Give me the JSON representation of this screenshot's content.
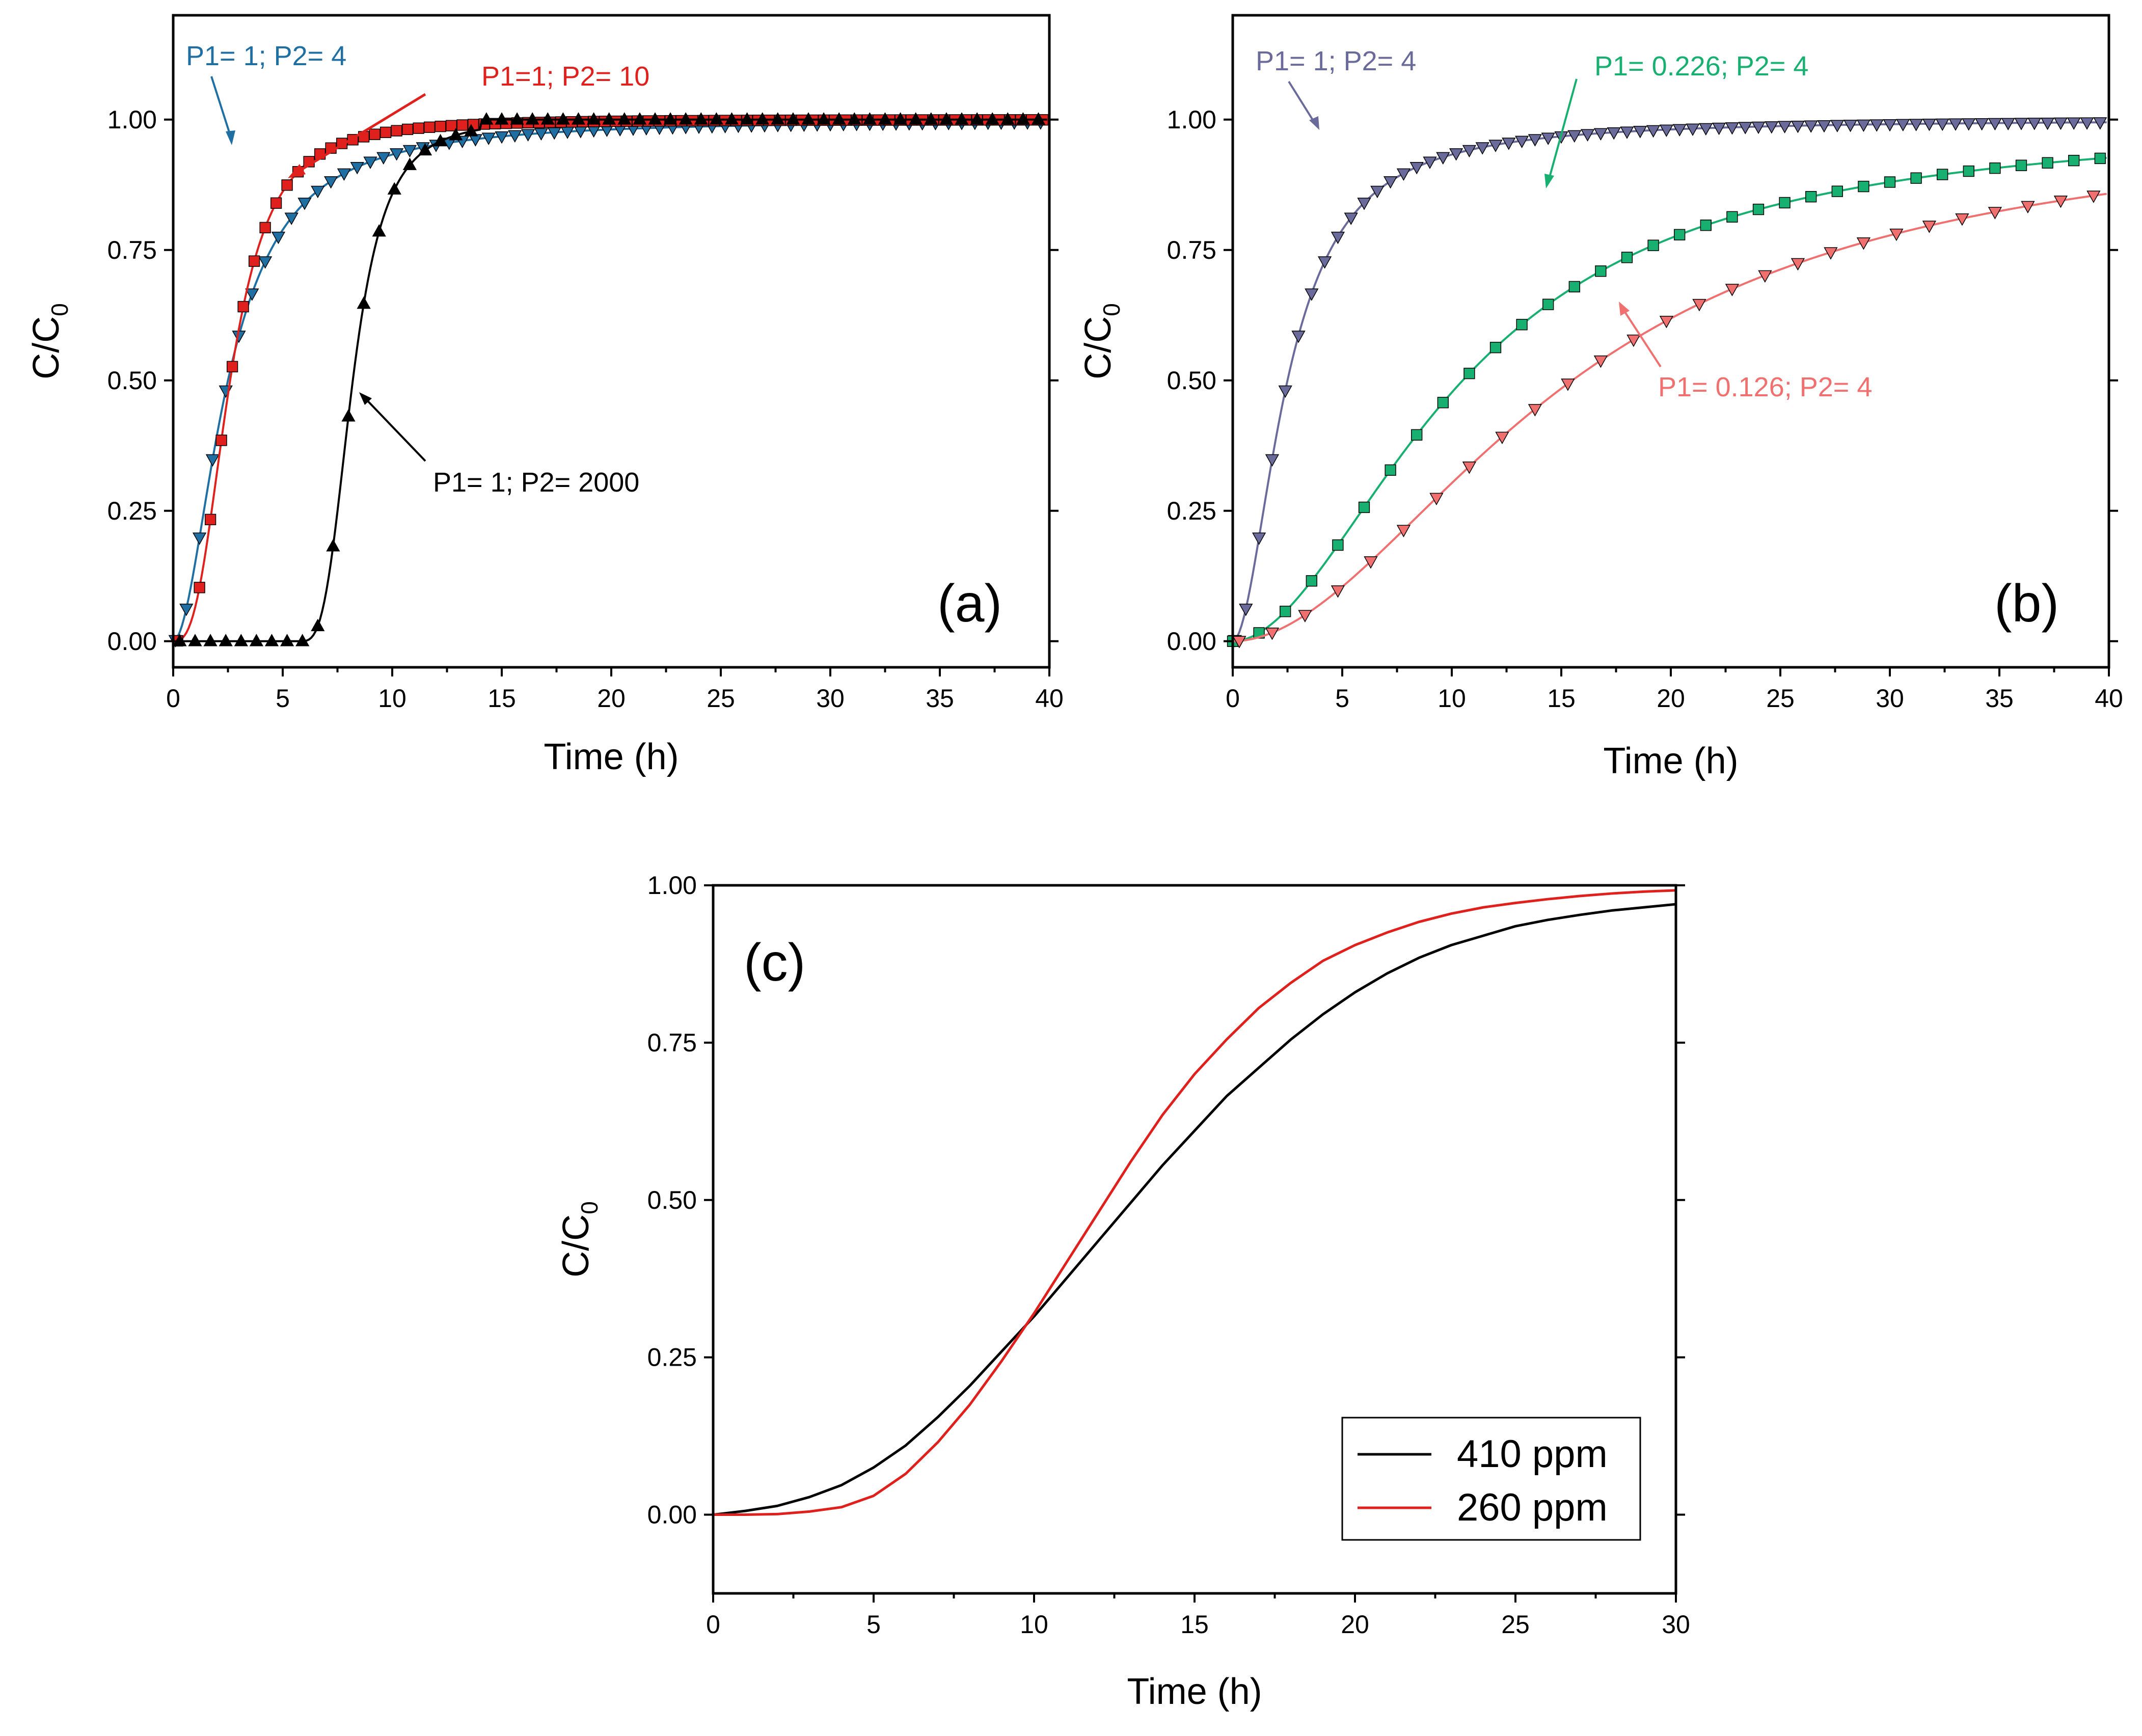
{
  "chart_data": [
    {
      "type": "scatter",
      "panel_label": "(a)",
      "xlabel": "Time (h)",
      "ylabel": "C/C0",
      "ylabel_main": "C/C",
      "ylabel_sub": "0",
      "xlim": [
        0,
        40
      ],
      "ylim": [
        -0.05,
        1.2
      ],
      "x_ticks": [
        0,
        5,
        10,
        15,
        20,
        25,
        30,
        35,
        40
      ],
      "x_tick_labels": [
        "0",
        "5",
        "10",
        "15",
        "20",
        "25",
        "30",
        "35",
        "40"
      ],
      "y_ticks": [
        0,
        0.25,
        0.5,
        0.75,
        1.0
      ],
      "y_tick_labels": [
        "0.00",
        "0.25",
        "0.50",
        "0.75",
        "1.00"
      ],
      "series": [
        {
          "name": "P1= 1; P2= 4",
          "color": "#1f6fa3",
          "marker": "triangle-down",
          "model": "bt",
          "tau": 2.5,
          "k": 1.9,
          "x": [
            0.1,
            0.6,
            1.2,
            1.8,
            2.4,
            3.0,
            3.6,
            4.2,
            4.8,
            5.4,
            6.0,
            6.6,
            7.2,
            7.8,
            8.4,
            9.0
          ]
        },
        {
          "name": "P1=1; P2= 10",
          "color": "#e0201c",
          "marker": "square",
          "model": "bt",
          "tau": 2.6,
          "k": 2.8,
          "x": [
            0.2,
            1.2,
            1.7,
            2.2,
            2.7,
            3.2,
            3.7,
            4.2,
            4.7,
            5.2,
            5.7,
            6.2,
            6.7,
            7.2,
            7.7,
            8.2,
            8.7,
            9.2,
            9.7,
            10.2
          ]
        },
        {
          "name": "P1= 1; P2= 2000",
          "color": "#000000",
          "marker": "triangle-up",
          "model": "step",
          "tau": 8.0,
          "k": 1.6,
          "x": [
            0.3,
            1.0,
            1.7,
            2.4,
            3.1,
            3.8,
            4.5,
            5.2,
            5.9,
            6.6,
            7.3,
            8.0,
            8.7,
            9.4,
            10.1,
            10.8,
            11.5,
            12.2,
            12.9,
            13.6,
            14.3,
            15.0
          ]
        }
      ],
      "annotations": [
        {
          "text": "P1= 1; P2= 4",
          "color": "#1f6fa3"
        },
        {
          "text": "P1=1; P2= 10",
          "color": "#e0201c"
        },
        {
          "text": "P1= 1; P2= 2000",
          "color": "#000000"
        }
      ]
    },
    {
      "type": "scatter",
      "panel_label": "(b)",
      "xlabel": "Time (h)",
      "ylabel": "C/C0",
      "ylabel_main": "C/C",
      "ylabel_sub": "0",
      "xlim": [
        0,
        40
      ],
      "ylim": [
        -0.05,
        1.2
      ],
      "x_ticks": [
        0,
        5,
        10,
        15,
        20,
        25,
        30,
        35,
        40
      ],
      "x_tick_labels": [
        "0",
        "5",
        "10",
        "15",
        "20",
        "25",
        "30",
        "35",
        "40"
      ],
      "y_ticks": [
        0,
        0.25,
        0.5,
        0.75,
        1.0
      ],
      "y_tick_labels": [
        "0.00",
        "0.25",
        "0.50",
        "0.75",
        "1.00"
      ],
      "series": [
        {
          "name": "P1= 1; P2= 4",
          "color": "#6b6b9b",
          "marker": "triangle-down",
          "model": "bt",
          "tau": 2.5,
          "k": 1.9,
          "x": [
            0.1,
            0.6,
            1.2,
            1.8,
            2.4,
            3.0,
            3.6,
            4.2,
            4.8,
            5.4,
            6.0,
            6.6,
            7.2,
            7.8,
            8.4,
            9.0
          ]
        },
        {
          "name": "P1= 0.226; P2= 4",
          "color": "#18b070",
          "marker": "square",
          "model": "bt",
          "tau": 10.5,
          "k": 1.9,
          "x": [
            0.0,
            1.2,
            2.4,
            3.6,
            4.8,
            6.0,
            7.2,
            8.4,
            9.6,
            10.8,
            12.0,
            13.2,
            14.4,
            15.6,
            16.8,
            18.0,
            19.2,
            20.4,
            21.6,
            22.8,
            24.0,
            25.2,
            26.4,
            27.6
          ]
        },
        {
          "name": "P1= 0.126; P2= 4",
          "color": "#f07070",
          "marker": "triangle-down",
          "model": "bt",
          "tau": 15.5,
          "k": 1.9,
          "x": [
            0.3,
            1.8,
            3.3,
            4.8,
            6.3,
            7.8,
            9.3,
            10.8,
            12.3,
            13.8,
            15.3,
            16.8,
            18.3,
            19.8,
            21.3,
            22.8,
            24.3,
            25.8,
            27.3,
            28.8,
            30.3,
            31.8,
            33.3,
            34.8,
            36.3,
            37.8,
            39.3
          ]
        }
      ],
      "annotations": [
        {
          "text": "P1= 1; P2= 4",
          "color": "#6b6b9b"
        },
        {
          "text": "P1= 0.226; P2= 4",
          "color": "#18b070"
        },
        {
          "text": "P1= 0.126; P2= 4",
          "color": "#f07070"
        }
      ]
    },
    {
      "type": "line",
      "panel_label": "(c)",
      "xlabel": "Time (h)",
      "ylabel": "C/C0",
      "ylabel_main": "C/C",
      "ylabel_sub": "0",
      "xlim": [
        0,
        30
      ],
      "ylim": [
        -0.125,
        1.0
      ],
      "x_ticks": [
        0,
        5,
        10,
        15,
        20,
        25,
        30
      ],
      "x_tick_labels": [
        "0",
        "5",
        "10",
        "15",
        "20",
        "25",
        "30"
      ],
      "y_ticks": [
        0,
        0.25,
        0.5,
        0.75,
        1.0
      ],
      "y_tick_labels": [
        "0.00",
        "0.25",
        "0.50",
        "0.75",
        "1.00"
      ],
      "legend_position": "bottom-right",
      "series": [
        {
          "name": "410 ppm",
          "color": "#000000",
          "x": [
            0,
            1,
            2,
            3,
            4,
            5,
            6,
            7,
            8,
            9,
            10,
            11,
            12,
            13,
            14,
            15,
            16,
            17,
            18,
            19,
            20,
            21,
            22,
            23,
            24,
            25,
            26,
            27,
            28,
            29,
            30
          ],
          "y": [
            0.0,
            0.006,
            0.014,
            0.028,
            0.047,
            0.075,
            0.11,
            0.155,
            0.205,
            0.26,
            0.315,
            0.375,
            0.435,
            0.495,
            0.555,
            0.61,
            0.665,
            0.71,
            0.755,
            0.795,
            0.83,
            0.86,
            0.885,
            0.905,
            0.92,
            0.935,
            0.945,
            0.953,
            0.96,
            0.965,
            0.97
          ]
        },
        {
          "name": "260 ppm",
          "color": "#e0201c",
          "x": [
            0,
            1,
            2,
            3,
            4,
            5,
            6,
            7,
            8,
            9,
            10,
            11,
            12,
            13,
            14,
            15,
            16,
            17,
            18,
            19,
            20,
            21,
            22,
            23,
            24,
            25,
            26,
            27,
            28,
            29,
            30
          ],
          "y": [
            0.0,
            0.0,
            0.001,
            0.005,
            0.012,
            0.03,
            0.065,
            0.115,
            0.175,
            0.245,
            0.32,
            0.4,
            0.48,
            0.56,
            0.635,
            0.7,
            0.755,
            0.805,
            0.845,
            0.88,
            0.905,
            0.925,
            0.942,
            0.955,
            0.965,
            0.972,
            0.978,
            0.983,
            0.987,
            0.99,
            0.992
          ]
        }
      ]
    }
  ]
}
